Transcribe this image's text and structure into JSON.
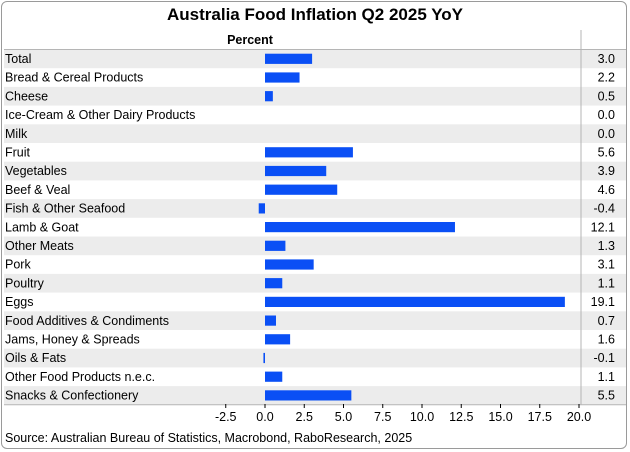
{
  "chart_data": {
    "type": "bar",
    "orientation": "horizontal",
    "title": "Australia Food Inflation Q2 2025 YoY",
    "column_header": "Percent",
    "categories": [
      "Total",
      "Bread & Cereal Products",
      "Cheese",
      "Ice-Cream & Other Dairy Products",
      "Milk",
      "Fruit",
      "Vegetables",
      "Beef & Veal",
      "Fish & Other Seafood",
      "Lamb & Goat",
      "Other Meats",
      "Pork",
      "Poultry",
      "Eggs",
      "Food Additives & Condiments",
      "Jams, Honey & Spreads",
      "Oils & Fats",
      "Other Food Products n.e.c.",
      "Snacks & Confectionery"
    ],
    "values": [
      3.0,
      2.2,
      0.5,
      0.0,
      0.0,
      5.6,
      3.9,
      4.6,
      -0.4,
      12.1,
      1.3,
      3.1,
      1.1,
      19.1,
      0.7,
      1.6,
      -0.1,
      1.1,
      5.5
    ],
    "value_labels": [
      "3.0",
      "2.2",
      "0.5",
      "0.0",
      "0.0",
      "5.6",
      "3.9",
      "4.6",
      "-0.4",
      "12.1",
      "1.3",
      "3.1",
      "1.1",
      "19.1",
      "0.7",
      "1.6",
      "-0.1",
      "1.1",
      "5.5"
    ],
    "xlim": [
      -3.5,
      21.0
    ],
    "xticks": [
      -2.5,
      0.0,
      2.5,
      5.0,
      7.5,
      10.0,
      12.5,
      15.0,
      17.5,
      20.0
    ],
    "xtick_labels": [
      "-2.5",
      "0.0",
      "2.5",
      "5.0",
      "7.5",
      "10.0",
      "12.5",
      "15.0",
      "17.5",
      "20.0"
    ],
    "bar_color": "#0a4ff5",
    "stripe_color": "#ececec",
    "grid": false,
    "legend": "none",
    "source": "Source: Australian Bureau of Statistics, Macrobond, RaboResearch, 2025"
  }
}
